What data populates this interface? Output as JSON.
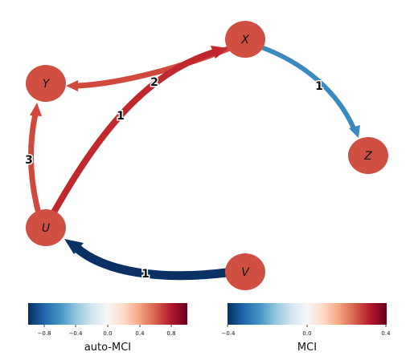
{
  "nodes": [
    {
      "id": "X",
      "label": "X",
      "color": "#cf4f42"
    },
    {
      "id": "Y",
      "label": "Y",
      "color": "#cf4f42"
    },
    {
      "id": "Z",
      "label": "Z",
      "color": "#cf4f42"
    },
    {
      "id": "U",
      "label": "U",
      "color": "#cf4f42"
    },
    {
      "id": "V",
      "label": "V",
      "color": "#cf4f42"
    }
  ],
  "edges": [
    {
      "from": "X",
      "to": "Y",
      "label": "2",
      "color": "#d1483c"
    },
    {
      "from": "U",
      "to": "X",
      "label": "1",
      "color": "#c0282e"
    },
    {
      "from": "X",
      "to": "Z",
      "label": "1",
      "color": "#3a8ac1"
    },
    {
      "from": "U",
      "to": "Y",
      "label": "3",
      "color": "#d1483c"
    },
    {
      "from": "V",
      "to": "U",
      "label": "1",
      "color": "#0a3164"
    }
  ],
  "colorbars": [
    {
      "title": "auto-MCI",
      "ticks": [
        "−0.8",
        "−0.4",
        "0.0",
        "0.4",
        "0.8"
      ]
    },
    {
      "title": "MCI",
      "ticks": [
        "−0.4",
        "0.0",
        "0.4"
      ]
    }
  ]
}
